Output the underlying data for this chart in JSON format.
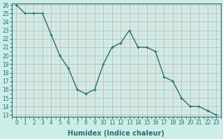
{
  "x": [
    0,
    1,
    2,
    3,
    4,
    5,
    6,
    7,
    8,
    9,
    10,
    11,
    12,
    13,
    14,
    15,
    16,
    17,
    18,
    19,
    20,
    21,
    22,
    23
  ],
  "y": [
    26,
    25,
    25,
    25,
    22.5,
    20,
    18.5,
    16,
    15.5,
    16,
    19,
    21,
    21.5,
    23,
    21,
    21,
    20.5,
    17.5,
    17,
    15,
    14,
    14,
    13.5,
    13
  ],
  "line_color": "#2d6e6e",
  "marker": "+",
  "bg_color": "#cceee8",
  "grid_color_major": "#d4b0b0",
  "grid_color_minor": "#e0c8c8",
  "xlabel": "Humidex (Indice chaleur)",
  "ylim": [
    13,
    26
  ],
  "xlim": [
    -0.5,
    23.5
  ],
  "yticks": [
    13,
    14,
    15,
    16,
    17,
    18,
    19,
    20,
    21,
    22,
    23,
    24,
    25,
    26
  ],
  "xticks": [
    0,
    1,
    2,
    3,
    4,
    5,
    6,
    7,
    8,
    9,
    10,
    11,
    12,
    13,
    14,
    15,
    16,
    17,
    18,
    19,
    20,
    21,
    22,
    23
  ],
  "tick_fontsize": 5.5,
  "label_fontsize": 7,
  "line_width": 1.0
}
